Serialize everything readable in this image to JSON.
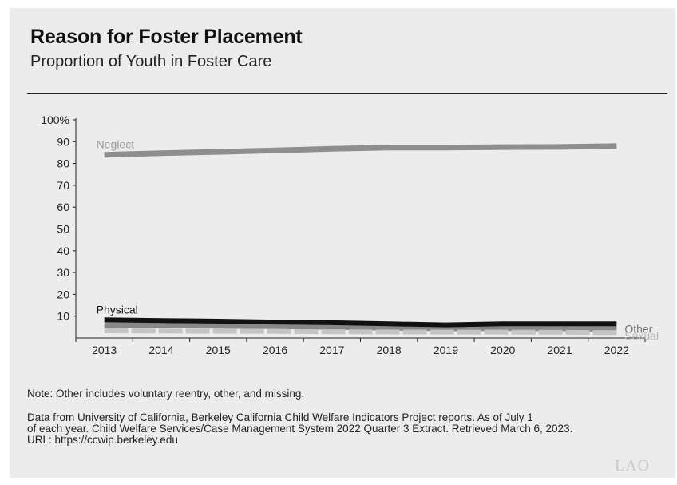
{
  "title": "Reason for Foster Placement",
  "subtitle": "Proportion of Youth in Foster Care",
  "note": "Note: Other includes voluntary reentry, other, and missing.",
  "source_lines": [
    "Data from University of California, Berkeley California Child Welfare Indicators Project reports. As of July 1",
    "of each year. Child Welfare Services/Case Management System 2022 Quarter 3 Extract. Retrieved March 6, 2023.",
    "URL: https://ccwip.berkeley.edu"
  ],
  "logo": "LAO",
  "chart_data": {
    "type": "line",
    "title": "Reason for Foster Placement",
    "subtitle": "Proportion of Youth in Foster Care",
    "x": [
      "2013",
      "2014",
      "2015",
      "2016",
      "2017",
      "2018",
      "2019",
      "2020",
      "2021",
      "2022"
    ],
    "ylim": [
      0,
      100
    ],
    "yticks": [
      10,
      20,
      30,
      40,
      50,
      60,
      70,
      80,
      90,
      100
    ],
    "ytick_labels": [
      "10",
      "20",
      "30",
      "40",
      "50",
      "60",
      "70",
      "80",
      "90",
      "100%"
    ],
    "grid": false,
    "series": [
      {
        "name": "Neglect",
        "color": "#8e8e8e",
        "values": [
          84,
          84.7,
          85.3,
          86,
          86.7,
          87.3,
          87.3,
          87.5,
          87.6,
          88
        ]
      },
      {
        "name": "Physical",
        "color": "#111111",
        "values": [
          8.3,
          8,
          7.7,
          7.3,
          7,
          6.5,
          6,
          6.5,
          6.5,
          6.5
        ]
      },
      {
        "name": "Other",
        "color": "#888888",
        "values": [
          6,
          5.8,
          5.6,
          5.4,
          5.1,
          4.7,
          4.4,
          4.5,
          4.4,
          4.2
        ]
      },
      {
        "name": "Sexual",
        "color": "#c4c4c4",
        "values": [
          3.3,
          3.2,
          3.1,
          3,
          2.9,
          2.8,
          2.7,
          2.7,
          2.6,
          2.5
        ]
      }
    ],
    "label_positions": [
      "left-above",
      "left-above",
      "right",
      "right"
    ]
  }
}
